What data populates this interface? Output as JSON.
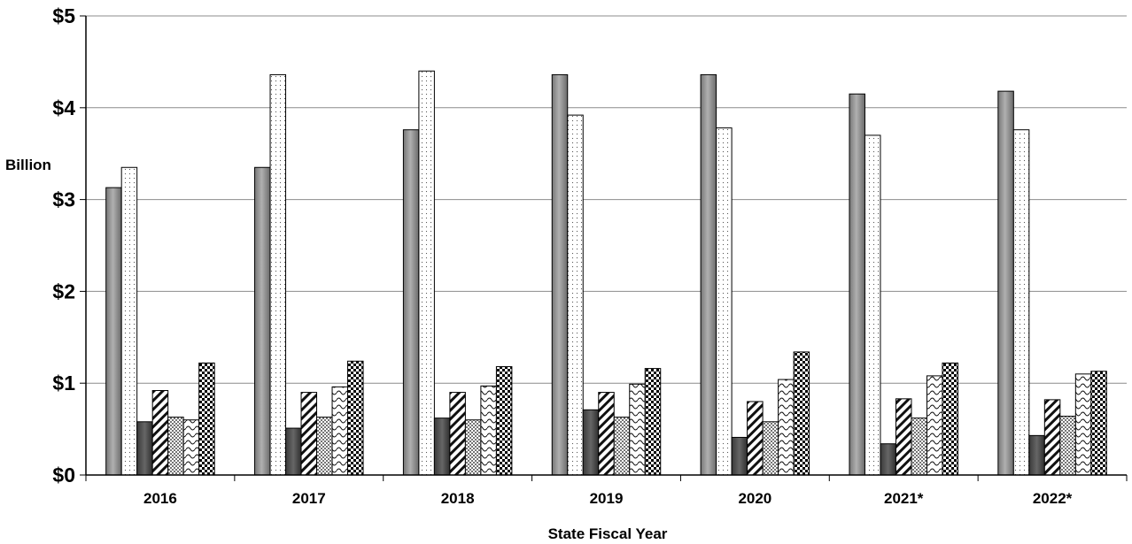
{
  "chart_data": {
    "type": "bar",
    "title": "",
    "xlabel": "State Fiscal Year",
    "ylabel": "Billion",
    "ylim": [
      0,
      5
    ],
    "yticks": [
      "$0",
      "$1",
      "$2",
      "$3",
      "$4",
      "$5"
    ],
    "grid": true,
    "legend": "none",
    "categories": [
      "2016",
      "2017",
      "2018",
      "2019",
      "2020",
      "2021*",
      "2022*"
    ],
    "series": [
      {
        "pattern": "solid-gray",
        "values": [
          3.13,
          3.35,
          3.76,
          4.36,
          4.36,
          4.15,
          4.18
        ]
      },
      {
        "pattern": "fine-dots",
        "values": [
          3.35,
          4.36,
          4.4,
          3.92,
          3.78,
          3.7,
          3.76
        ]
      },
      {
        "pattern": "solid-dark",
        "values": [
          0.58,
          0.51,
          0.62,
          0.71,
          0.41,
          0.34,
          0.43
        ]
      },
      {
        "pattern": "diagonal-stripes",
        "values": [
          0.92,
          0.9,
          0.9,
          0.9,
          0.8,
          0.83,
          0.82
        ]
      },
      {
        "pattern": "dense-dots",
        "values": [
          0.63,
          0.63,
          0.6,
          0.63,
          0.58,
          0.62,
          0.64
        ]
      },
      {
        "pattern": "wavy",
        "values": [
          0.6,
          0.96,
          0.97,
          0.99,
          1.04,
          1.08,
          1.1
        ]
      },
      {
        "pattern": "checker",
        "values": [
          1.22,
          1.24,
          1.18,
          1.16,
          1.34,
          1.22,
          1.13
        ]
      }
    ]
  }
}
